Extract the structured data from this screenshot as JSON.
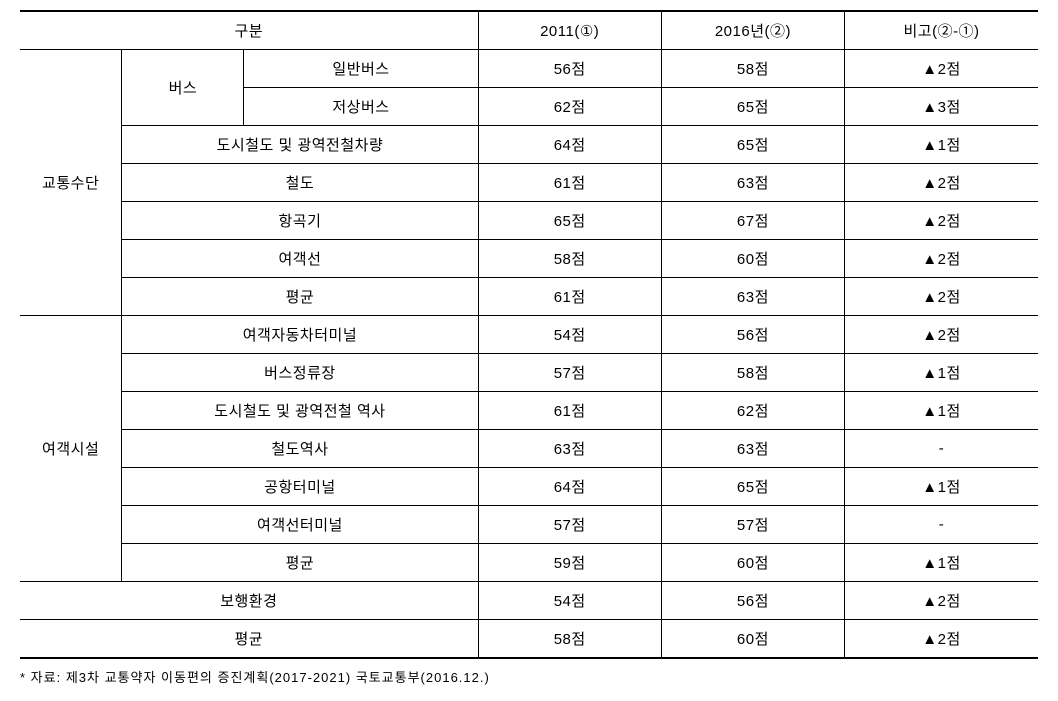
{
  "headers": {
    "category": "구분",
    "year2011": "2011(①)",
    "year2016": "2016년(②)",
    "difference": "비고(②-①)"
  },
  "groups": {
    "transport": "교통수단",
    "bus": "버스",
    "passenger": "여객시설"
  },
  "rows": {
    "r1": {
      "label": "일반버스",
      "y2011": "56점",
      "y2016": "58점",
      "diff": "▲2점"
    },
    "r2": {
      "label": "저상버스",
      "y2011": "62점",
      "y2016": "65점",
      "diff": "▲3점"
    },
    "r3": {
      "label": "도시철도 및 광역전철차량",
      "y2011": "64점",
      "y2016": "65점",
      "diff": "▲1점"
    },
    "r4": {
      "label": "철도",
      "y2011": "61점",
      "y2016": "63점",
      "diff": "▲2점"
    },
    "r5": {
      "label": "항곡기",
      "y2011": "65점",
      "y2016": "67점",
      "diff": "▲2점"
    },
    "r6": {
      "label": "여객선",
      "y2011": "58점",
      "y2016": "60점",
      "diff": "▲2점"
    },
    "r7": {
      "label": "평균",
      "y2011": "61점",
      "y2016": "63점",
      "diff": "▲2점"
    },
    "r8": {
      "label": "여객자동차터미널",
      "y2011": "54점",
      "y2016": "56점",
      "diff": "▲2점"
    },
    "r9": {
      "label": "버스정류장",
      "y2011": "57점",
      "y2016": "58점",
      "diff": "▲1점"
    },
    "r10": {
      "label": "도시철도 및 광역전철 역사",
      "y2011": "61점",
      "y2016": "62점",
      "diff": "▲1점"
    },
    "r11": {
      "label": "철도역사",
      "y2011": "63점",
      "y2016": "63점",
      "diff": "-"
    },
    "r12": {
      "label": "공항터미널",
      "y2011": "64점",
      "y2016": "65점",
      "diff": "▲1점"
    },
    "r13": {
      "label": "여객선터미널",
      "y2011": "57점",
      "y2016": "57점",
      "diff": "-"
    },
    "r14": {
      "label": "평균",
      "y2011": "59점",
      "y2016": "60점",
      "diff": "▲1점"
    },
    "r15": {
      "label": "보행환경",
      "y2011": "54점",
      "y2016": "56점",
      "diff": "▲2점"
    },
    "r16": {
      "label": "평균",
      "y2011": "58점",
      "y2016": "60점",
      "diff": "▲2점"
    }
  },
  "footnote": "* 자료: 제3차 교통약자 이동편의 증진계획(2017-2021) 국토교통부(2016.12.)",
  "styling": {
    "border_color": "#000000",
    "thick_border_width": 2,
    "thin_border_width": 1,
    "font_size_cell": 15,
    "font_size_footnote": 13,
    "text_color": "#000000",
    "background_color": "#ffffff",
    "cell_padding": 8
  }
}
